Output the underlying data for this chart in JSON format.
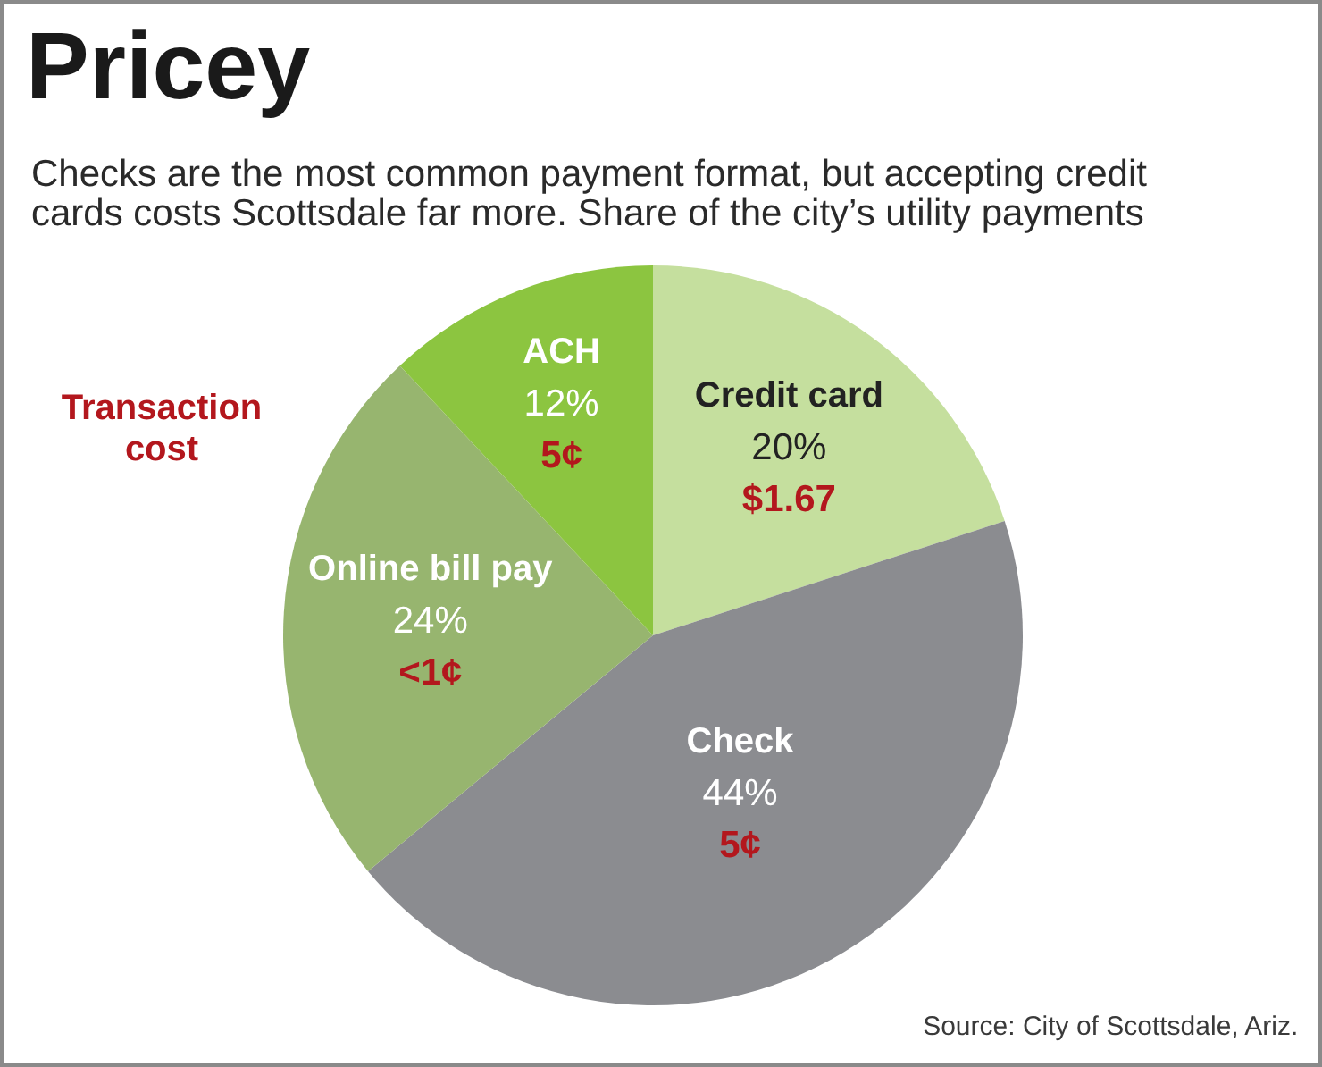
{
  "chart_data": {
    "type": "pie",
    "title": "Pricey",
    "subtitle": "Checks are the most common payment format, but accepting credit cards costs Scottsdale far more. Share of the city’s utility payments",
    "categories": [
      "Credit card",
      "Check",
      "Online bill pay",
      "ACH"
    ],
    "values": [
      20,
      44,
      24,
      12
    ],
    "colors": [
      "#c5df9e",
      "#8b8c90",
      "#97b56f",
      "#8cc540"
    ],
    "value_labels": [
      "20%",
      "44%",
      "24%",
      "12%"
    ],
    "annotations": [
      "Transaction cost",
      {
        "text": "$1.67",
        "x": "Credit card"
      },
      {
        "text": "5¢",
        "x": "Check"
      },
      {
        "text": "<1¢",
        "x": "Online bill pay"
      },
      {
        "text": "5¢",
        "x": "ACH"
      },
      "Source: City of Scottsdale, Ariz."
    ]
  }
}
